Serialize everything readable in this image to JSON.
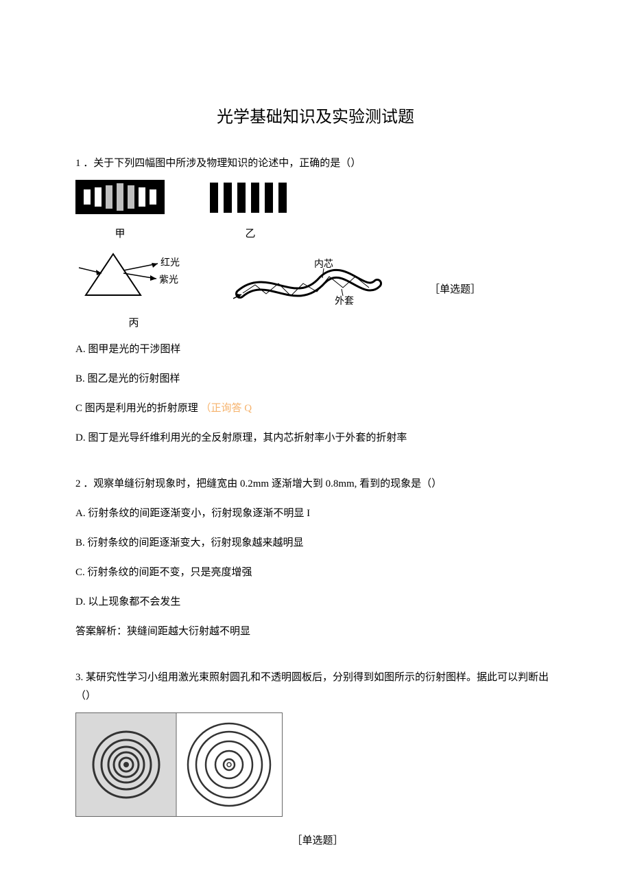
{
  "title": "光学基础知识及实验测试题",
  "tag_single": "［单选题］",
  "q1": {
    "stem": "1 ．关于下列四幅图中所涉及物理知识的论述中，正确的是（）",
    "fig_jia_label": "甲",
    "fig_yi_label": "乙",
    "fig_bing_label": "丙",
    "prism_red": "红光",
    "prism_violet": "紫光",
    "fiber_inner": "内芯",
    "fiber_outer": "外套",
    "optA": "A. 图甲是光的干涉图样",
    "optB": "B. 图乙是光的衍射图样",
    "optC_prefix": "C 图丙是利用光的折射原理 ",
    "optC_ans": "（正询答 Q",
    "optD": "D. 图丁是光导纤维利用光的全反射原理，其内芯折射率小于外套的折射率",
    "jia": {
      "bg": "#000000",
      "bar": "#ffffff",
      "center_tint": "#bfbfbf",
      "heights": [
        22,
        28,
        34,
        40,
        34,
        28,
        22
      ]
    },
    "yi": {
      "bar": "#000000",
      "count": 6
    },
    "bing": {
      "line": "#000000",
      "arrow": "#000000"
    },
    "ding": {
      "line": "#000000",
      "fill": "#ffffff"
    }
  },
  "q2": {
    "stem": "2 ．观察单缝衍射现象时，把缝宽由 0.2mm 逐渐增大到 0.8mm, 看到的现象是（）",
    "optA": "A. 衍射条纹的间距逐渐变小，衍射现象逐渐不明显 I",
    "optB": "B. 衍射条纹的间距逐渐变大，衍射现象越来越明显",
    "optC": "C. 衍射条纹的间距不变，只是亮度增强",
    "optD": "D. 以上现象都不会发生",
    "note": "答案解析：狭缝间距越大衍射越不明显"
  },
  "q3": {
    "stem": "3. 某研究性学习小组用激光束照射圆孔和不透明圆板后，分别得到如图所示的衍射图样。据此可以判断出（）",
    "left": {
      "bg": "#d9d9d9",
      "ring": "#333333",
      "center": "#cccccc",
      "radii": [
        10,
        18,
        26,
        36,
        48
      ]
    },
    "right": {
      "bg": "#ffffff",
      "ring": "#333333",
      "dot": "#333333",
      "radii": [
        8,
        20,
        34,
        48,
        60
      ]
    }
  }
}
